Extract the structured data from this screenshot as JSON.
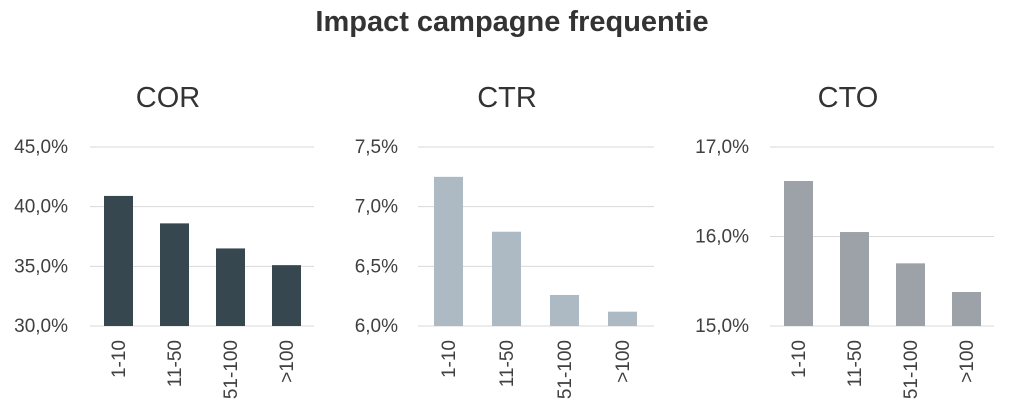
{
  "main_title": "Impact campagne frequentie",
  "chart_data": [
    {
      "type": "bar",
      "title": "COR",
      "categories": [
        "1-10",
        "11-50",
        "51-100",
        ">100"
      ],
      "values": [
        40.9,
        38.6,
        36.5,
        35.1
      ],
      "ylim": [
        30,
        45
      ],
      "yticks": [
        "30,0%",
        "35,0%",
        "40,0%",
        "45,0%"
      ],
      "ytick_values": [
        30,
        35,
        40,
        45
      ],
      "color": "#37474f",
      "grid": true
    },
    {
      "type": "bar",
      "title": "CTR",
      "categories": [
        "1-10",
        "11-50",
        "51-100",
        ">100"
      ],
      "values": [
        7.25,
        6.79,
        6.26,
        6.12
      ],
      "ylim": [
        6.0,
        7.5
      ],
      "yticks": [
        "6,0%",
        "6,5%",
        "7,0%",
        "7,5%"
      ],
      "ytick_values": [
        6.0,
        6.5,
        7.0,
        7.5
      ],
      "color": "#adb9c3",
      "grid": true
    },
    {
      "type": "bar",
      "title": "CTO",
      "categories": [
        "1-10",
        "11-50",
        "51-100",
        ">100"
      ],
      "values": [
        16.62,
        16.05,
        15.7,
        15.38
      ],
      "ylim": [
        15,
        17
      ],
      "yticks": [
        "15,0%",
        "16,0%",
        "17,0%"
      ],
      "ytick_values": [
        15,
        16,
        17
      ],
      "color": "#9ca2a8",
      "grid": true
    }
  ]
}
